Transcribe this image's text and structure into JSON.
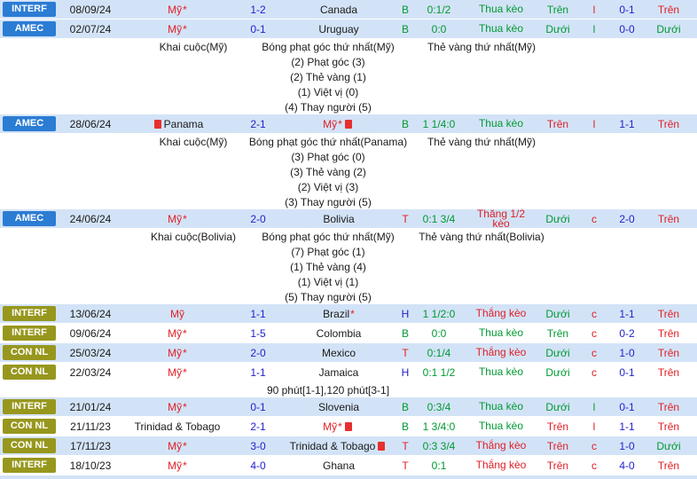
{
  "colors": {
    "red": "#e01e25",
    "green": "#009933",
    "blue": "#2222cc",
    "black": "#1a1a1a",
    "badge_blue": "#2b7cd3",
    "badge_olive": "#97971e",
    "row_blue": "#d3e3f7",
    "card_red": "#e63030"
  },
  "rows": [
    {
      "type": "match",
      "bg": "blue",
      "badge": {
        "label": "INTERF",
        "color": "blue"
      },
      "date": "08/09/24",
      "home": {
        "name": "Mỹ",
        "color": "red",
        "star": "*"
      },
      "score": "1-2",
      "away": {
        "name": "Canada",
        "color": "black"
      },
      "letter": {
        "text": "B",
        "color": "green"
      },
      "odds": "0:1/2",
      "keo": {
        "text": "Thua kèo",
        "color": "green"
      },
      "ou1": {
        "text": "Trên",
        "color": "green"
      },
      "lc": {
        "text": "l",
        "color": "red"
      },
      "ht": "0-1",
      "ou2": {
        "text": "Trên",
        "color": "red"
      }
    },
    {
      "type": "match",
      "bg": "blue",
      "badge": {
        "label": "AMEC",
        "color": "blue"
      },
      "date": "02/07/24",
      "home": {
        "name": "Mỹ",
        "color": "red",
        "star": "*"
      },
      "score": "0-1",
      "away": {
        "name": "Uruguay",
        "color": "black"
      },
      "letter": {
        "text": "B",
        "color": "green"
      },
      "odds": "0:0",
      "keo": {
        "text": "Thua kèo",
        "color": "green"
      },
      "ou1": {
        "text": "Dưới",
        "color": "green"
      },
      "lc": {
        "text": "l",
        "color": "green"
      },
      "ht": "0-0",
      "ou2": {
        "text": "Dưới",
        "color": "green"
      }
    },
    {
      "type": "detail_header",
      "items": [
        "Khai cuộc(Mỹ)",
        "Bóng phạt góc thứ nhất(Mỹ)",
        "Thẻ vàng thứ nhất(Mỹ)"
      ]
    },
    {
      "type": "detail_line",
      "text": "(2) Phạt góc (3)"
    },
    {
      "type": "detail_line",
      "text": "(2) Thẻ vàng (1)"
    },
    {
      "type": "detail_line",
      "text": "(1) Việt vị (0)"
    },
    {
      "type": "detail_line",
      "text": "(4) Thay người (5)"
    },
    {
      "type": "match",
      "bg": "blue",
      "badge": {
        "label": "AMEC",
        "color": "blue"
      },
      "date": "28/06/24",
      "home": {
        "name": "Panama",
        "color": "black",
        "card_before": true
      },
      "score": "2-1",
      "away": {
        "name": "Mỹ",
        "color": "red",
        "star": "*",
        "card_after": true
      },
      "letter": {
        "text": "B",
        "color": "green"
      },
      "odds": "1 1/4:0",
      "keo": {
        "text": "Thua kèo",
        "color": "green"
      },
      "ou1": {
        "text": "Trên",
        "color": "red"
      },
      "lc": {
        "text": "l",
        "color": "red"
      },
      "ht": "1-1",
      "ou2": {
        "text": "Trên",
        "color": "red"
      }
    },
    {
      "type": "detail_header",
      "items": [
        "Khai cuộc(Mỹ)",
        "Bóng phạt góc thứ nhất(Panama)",
        "Thẻ vàng thứ nhất(Mỹ)"
      ]
    },
    {
      "type": "detail_line",
      "text": "(3) Phạt góc (0)"
    },
    {
      "type": "detail_line",
      "text": "(3) Thẻ vàng (2)"
    },
    {
      "type": "detail_line",
      "text": "(2) Việt vị (3)"
    },
    {
      "type": "detail_line",
      "text": "(3) Thay người (5)"
    },
    {
      "type": "match",
      "bg": "blue",
      "badge": {
        "label": "AMEC",
        "color": "blue"
      },
      "date": "24/06/24",
      "home": {
        "name": "Mỹ",
        "color": "red",
        "star": "*"
      },
      "score": "2-0",
      "away": {
        "name": "Bolivia",
        "color": "black"
      },
      "letter": {
        "text": "T",
        "color": "red"
      },
      "odds": "0:1 3/4",
      "keo": {
        "text": "Thắng 1/2 kèo",
        "color": "red"
      },
      "ou1": {
        "text": "Dưới",
        "color": "green"
      },
      "lc": {
        "text": "c",
        "color": "red"
      },
      "ht": "2-0",
      "ou2": {
        "text": "Trên",
        "color": "red"
      }
    },
    {
      "type": "detail_header",
      "items": [
        "Khai cuộc(Bolivia)",
        "Bóng phạt góc thứ nhất(Mỹ)",
        "Thẻ vàng thứ nhất(Bolivia)"
      ]
    },
    {
      "type": "detail_line",
      "text": "(7) Phạt góc (1)"
    },
    {
      "type": "detail_line",
      "text": "(1) Thẻ vàng (4)"
    },
    {
      "type": "detail_line",
      "text": "(1) Việt vị (1)"
    },
    {
      "type": "detail_line",
      "text": "(5) Thay người (5)"
    },
    {
      "type": "match",
      "bg": "blue",
      "badge": {
        "label": "INTERF",
        "color": "olive"
      },
      "date": "13/06/24",
      "home": {
        "name": "Mỹ",
        "color": "red"
      },
      "score": "1-1",
      "away": {
        "name": "Brazil",
        "color": "black",
        "star": "*"
      },
      "letter": {
        "text": "H",
        "color": "blue"
      },
      "odds": "1 1/2:0",
      "keo": {
        "text": "Thắng kèo",
        "color": "red"
      },
      "ou1": {
        "text": "Dưới",
        "color": "green"
      },
      "lc": {
        "text": "c",
        "color": "red"
      },
      "ht": "1-1",
      "ou2": {
        "text": "Trên",
        "color": "red"
      }
    },
    {
      "type": "match",
      "bg": "white",
      "badge": {
        "label": "INTERF",
        "color": "olive"
      },
      "date": "09/06/24",
      "home": {
        "name": "Mỹ",
        "color": "red",
        "star": "*"
      },
      "score": "1-5",
      "away": {
        "name": "Colombia",
        "color": "black"
      },
      "letter": {
        "text": "B",
        "color": "green"
      },
      "odds": "0:0",
      "keo": {
        "text": "Thua kèo",
        "color": "green"
      },
      "ou1": {
        "text": "Trên",
        "color": "green"
      },
      "lc": {
        "text": "c",
        "color": "red"
      },
      "ht": "0-2",
      "ou2": {
        "text": "Trên",
        "color": "red"
      }
    },
    {
      "type": "match",
      "bg": "blue",
      "badge": {
        "label": "CON NL",
        "color": "olive"
      },
      "date": "25/03/24",
      "home": {
        "name": "Mỹ",
        "color": "red",
        "star": "*"
      },
      "score": "2-0",
      "away": {
        "name": "Mexico",
        "color": "black"
      },
      "letter": {
        "text": "T",
        "color": "red"
      },
      "odds": "0:1/4",
      "keo": {
        "text": "Thắng kèo",
        "color": "red"
      },
      "ou1": {
        "text": "Dưới",
        "color": "green"
      },
      "lc": {
        "text": "c",
        "color": "red"
      },
      "ht": "1-0",
      "ou2": {
        "text": "Trên",
        "color": "red"
      }
    },
    {
      "type": "match",
      "bg": "white",
      "badge": {
        "label": "CON NL",
        "color": "olive"
      },
      "date": "22/03/24",
      "home": {
        "name": "Mỹ",
        "color": "red",
        "star": "*"
      },
      "score": "1-1",
      "away": {
        "name": "Jamaica",
        "color": "black"
      },
      "letter": {
        "text": "H",
        "color": "blue"
      },
      "odds": "0:1 1/2",
      "keo": {
        "text": "Thua kèo",
        "color": "green"
      },
      "ou1": {
        "text": "Dưới",
        "color": "green"
      },
      "lc": {
        "text": "c",
        "color": "red"
      },
      "ht": "0-1",
      "ou2": {
        "text": "Trên",
        "color": "red"
      }
    },
    {
      "type": "note",
      "text": "90 phút[1-1],120 phút[3-1]"
    },
    {
      "type": "match",
      "bg": "blue",
      "badge": {
        "label": "INTERF",
        "color": "olive"
      },
      "date": "21/01/24",
      "home": {
        "name": "Mỹ",
        "color": "red",
        "star": "*"
      },
      "score": "0-1",
      "away": {
        "name": "Slovenia",
        "color": "black"
      },
      "letter": {
        "text": "B",
        "color": "green"
      },
      "odds": "0:3/4",
      "keo": {
        "text": "Thua kèo",
        "color": "green"
      },
      "ou1": {
        "text": "Dưới",
        "color": "green"
      },
      "lc": {
        "text": "l",
        "color": "green"
      },
      "ht": "0-1",
      "ou2": {
        "text": "Trên",
        "color": "red"
      }
    },
    {
      "type": "match",
      "bg": "white",
      "badge": {
        "label": "CON NL",
        "color": "olive"
      },
      "date": "21/11/23",
      "home": {
        "name": "Trinidad & Tobago",
        "color": "black"
      },
      "score": "2-1",
      "away": {
        "name": "Mỹ",
        "color": "red",
        "star": "*",
        "card_after": true
      },
      "letter": {
        "text": "B",
        "color": "green"
      },
      "odds": "1 3/4:0",
      "keo": {
        "text": "Thua kèo",
        "color": "green"
      },
      "ou1": {
        "text": "Trên",
        "color": "red"
      },
      "lc": {
        "text": "l",
        "color": "red"
      },
      "ht": "1-1",
      "ou2": {
        "text": "Trên",
        "color": "red"
      }
    },
    {
      "type": "match",
      "bg": "blue",
      "badge": {
        "label": "CON NL",
        "color": "olive"
      },
      "date": "17/11/23",
      "home": {
        "name": "Mỹ",
        "color": "red",
        "star": "*"
      },
      "score": "3-0",
      "away": {
        "name": "Trinidad & Tobago",
        "color": "black",
        "card_after": true
      },
      "letter": {
        "text": "T",
        "color": "red"
      },
      "odds": "0:3 3/4",
      "keo": {
        "text": "Thắng kèo",
        "color": "red"
      },
      "ou1": {
        "text": "Trên",
        "color": "red"
      },
      "lc": {
        "text": "c",
        "color": "red"
      },
      "ht": "1-0",
      "ou2": {
        "text": "Dưới",
        "color": "green"
      }
    },
    {
      "type": "match",
      "bg": "white",
      "badge": {
        "label": "INTERF",
        "color": "olive"
      },
      "date": "18/10/23",
      "home": {
        "name": "Mỹ",
        "color": "red",
        "star": "*"
      },
      "score": "4-0",
      "away": {
        "name": "Ghana",
        "color": "black"
      },
      "letter": {
        "text": "T",
        "color": "red"
      },
      "odds": "0:1",
      "keo": {
        "text": "Thắng kèo",
        "color": "red"
      },
      "ou1": {
        "text": "Trên",
        "color": "red"
      },
      "lc": {
        "text": "c",
        "color": "red"
      },
      "ht": "4-0",
      "ou2": {
        "text": "Trên",
        "color": "red"
      }
    },
    {
      "type": "sliver"
    }
  ]
}
